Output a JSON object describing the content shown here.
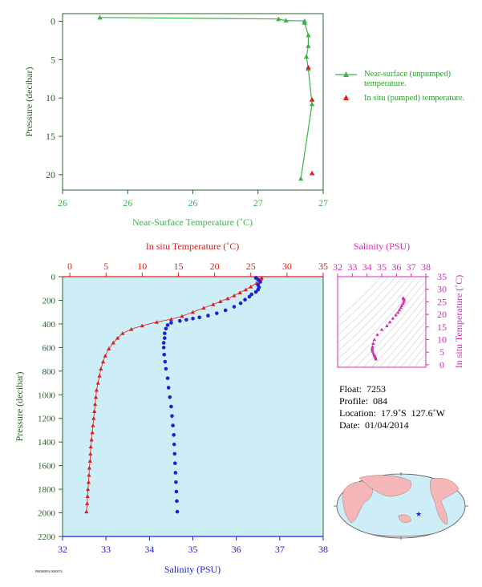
{
  "colors": {
    "green": "#3cb44b",
    "red": "#e41a1c",
    "blue": "#1f1fd6",
    "magenta": "#d42cb5",
    "axis_dark": "#2f5f2f",
    "ocean_bg": "#cdeef6",
    "land": "#f4b6b6"
  },
  "chart_data": [
    {
      "type": "line",
      "xlabel": "Near-Surface Temperature (˚C)",
      "ylabel": "Pressure (decibar)",
      "xticks": [
        "26",
        "26",
        "26",
        "27",
        "27"
      ],
      "xlim": [
        26.4,
        27.1
      ],
      "ylim": [
        22,
        -1
      ],
      "yticks": [
        "0",
        "5",
        "10",
        "15",
        "20"
      ],
      "series": [
        {
          "name": "Near-surface (unpumped) temperature.",
          "marker": "triangle",
          "points": [
            [
              26.5,
              -0.5
            ],
            [
              26.98,
              -0.3
            ],
            [
              27.0,
              -0.1
            ],
            [
              27.05,
              -0.05
            ],
            [
              27.05,
              0.2
            ],
            [
              27.06,
              1.8
            ],
            [
              27.06,
              3.2
            ],
            [
              27.055,
              4.6
            ],
            [
              27.06,
              6.2
            ],
            [
              27.07,
              10.8
            ],
            [
              27.04,
              20.5
            ]
          ]
        },
        {
          "name": "In situ (pumped) temperature.",
          "marker": "triangle",
          "points": [
            [
              27.06,
              6.0
            ],
            [
              27.07,
              10.2
            ],
            [
              27.07,
              19.8
            ]
          ]
        }
      ]
    },
    {
      "type": "scatter",
      "top_axis_label": "In situ Temperature (˚C)",
      "bottom_axis_label": "Salinity (PSU)",
      "ylabel": "Pressure (decibar)",
      "temp_xlim": [
        -1,
        35
      ],
      "temp_ticks": [
        "0",
        "5",
        "10",
        "15",
        "20",
        "25",
        "30",
        "35"
      ],
      "sal_xlim": [
        32,
        38
      ],
      "sal_ticks": [
        "32",
        "33",
        "34",
        "35",
        "36",
        "37",
        "38"
      ],
      "ylim": [
        2200,
        0
      ],
      "yticks": [
        "0",
        "200",
        "400",
        "600",
        "800",
        "1000",
        "1200",
        "1400",
        "1600",
        "1800",
        "2000",
        "2200"
      ],
      "temperature_profile": [
        [
          26.5,
          10
        ],
        [
          26.4,
          20
        ],
        [
          26.3,
          35
        ],
        [
          25.8,
          55
        ],
        [
          25.0,
          85
        ],
        [
          24.3,
          110
        ],
        [
          23.5,
          135
        ],
        [
          22.7,
          160
        ],
        [
          21.8,
          185
        ],
        [
          20.8,
          210
        ],
        [
          19.8,
          235
        ],
        [
          18.5,
          265
        ],
        [
          17.0,
          300
        ],
        [
          15.5,
          335
        ],
        [
          14.0,
          360
        ],
        [
          12.0,
          385
        ],
        [
          10.0,
          415
        ],
        [
          8.5,
          445
        ],
        [
          7.3,
          480
        ],
        [
          6.6,
          520
        ],
        [
          6.0,
          560
        ],
        [
          5.4,
          610
        ],
        [
          4.9,
          670
        ],
        [
          4.6,
          720
        ],
        [
          4.3,
          780
        ],
        [
          4.1,
          840
        ],
        [
          3.9,
          900
        ],
        [
          3.7,
          960
        ],
        [
          3.6,
          1020
        ],
        [
          3.5,
          1080
        ],
        [
          3.4,
          1140
        ],
        [
          3.3,
          1200
        ],
        [
          3.2,
          1260
        ],
        [
          3.1,
          1320
        ],
        [
          3.0,
          1380
        ],
        [
          2.9,
          1440
        ],
        [
          2.85,
          1500
        ],
        [
          2.8,
          1560
        ],
        [
          2.7,
          1620
        ],
        [
          2.65,
          1680
        ],
        [
          2.6,
          1740
        ],
        [
          2.5,
          1800
        ],
        [
          2.45,
          1860
        ],
        [
          2.4,
          1920
        ],
        [
          2.3,
          1990
        ]
      ],
      "salinity_profile": [
        [
          36.45,
          10
        ],
        [
          36.5,
          25
        ],
        [
          36.55,
          45
        ],
        [
          36.5,
          70
        ],
        [
          36.52,
          90
        ],
        [
          36.5,
          110
        ],
        [
          36.45,
          130
        ],
        [
          36.35,
          150
        ],
        [
          36.3,
          170
        ],
        [
          36.2,
          195
        ],
        [
          36.1,
          225
        ],
        [
          35.95,
          255
        ],
        [
          35.75,
          285
        ],
        [
          35.55,
          310
        ],
        [
          35.35,
          330
        ],
        [
          35.15,
          345
        ],
        [
          35.0,
          355
        ],
        [
          34.85,
          365
        ],
        [
          34.7,
          375
        ],
        [
          34.5,
          390
        ],
        [
          34.42,
          410
        ],
        [
          34.38,
          440
        ],
        [
          34.35,
          480
        ],
        [
          34.35,
          520
        ],
        [
          34.33,
          560
        ],
        [
          34.33,
          600
        ],
        [
          34.34,
          660
        ],
        [
          34.36,
          720
        ],
        [
          34.38,
          780
        ],
        [
          34.42,
          860
        ],
        [
          34.44,
          940
        ],
        [
          34.47,
          1020
        ],
        [
          34.5,
          1100
        ],
        [
          34.52,
          1180
        ],
        [
          34.54,
          1260
        ],
        [
          34.56,
          1340
        ],
        [
          34.57,
          1420
        ],
        [
          34.58,
          1500
        ],
        [
          34.59,
          1580
        ],
        [
          34.6,
          1660
        ],
        [
          34.61,
          1740
        ],
        [
          34.62,
          1820
        ],
        [
          34.63,
          1900
        ],
        [
          34.64,
          1990
        ]
      ]
    },
    {
      "type": "scatter",
      "xlabel": "Salinity (PSU)",
      "ylabel": "In situ Temperature (˚C)",
      "xlim": [
        32,
        38
      ],
      "xticks": [
        "32",
        "33",
        "34",
        "35",
        "36",
        "37",
        "38"
      ],
      "ylim": [
        -1,
        35
      ],
      "yticks": [
        "0",
        "5",
        "10",
        "15",
        "20",
        "25",
        "30",
        "35"
      ],
      "points": [
        [
          34.6,
          2.3
        ],
        [
          34.58,
          2.8
        ],
        [
          34.56,
          3.2
        ],
        [
          34.52,
          3.6
        ],
        [
          34.48,
          4.0
        ],
        [
          34.42,
          4.6
        ],
        [
          34.38,
          5.4
        ],
        [
          34.35,
          6.0
        ],
        [
          34.35,
          6.6
        ],
        [
          34.38,
          7.3
        ],
        [
          34.42,
          8.5
        ],
        [
          34.5,
          10.0
        ],
        [
          34.7,
          12.0
        ],
        [
          35.0,
          14.0
        ],
        [
          35.35,
          15.5
        ],
        [
          35.55,
          17.0
        ],
        [
          35.75,
          18.5
        ],
        [
          35.95,
          19.8
        ],
        [
          36.1,
          20.8
        ],
        [
          36.2,
          21.8
        ],
        [
          36.3,
          22.7
        ],
        [
          36.35,
          23.5
        ],
        [
          36.45,
          24.3
        ],
        [
          36.5,
          25.0
        ],
        [
          36.52,
          25.8
        ],
        [
          36.5,
          26.3
        ],
        [
          36.45,
          26.5
        ]
      ]
    }
  ],
  "float_info": {
    "float": "Float:  7253",
    "profile": "Profile:  084",
    "location": "Location:  17.9˚S  127.6˚W",
    "date": "Date:  01/04/2014"
  },
  "map": {
    "marker": "star"
  },
  "footnote": "P08380P01.0005074"
}
